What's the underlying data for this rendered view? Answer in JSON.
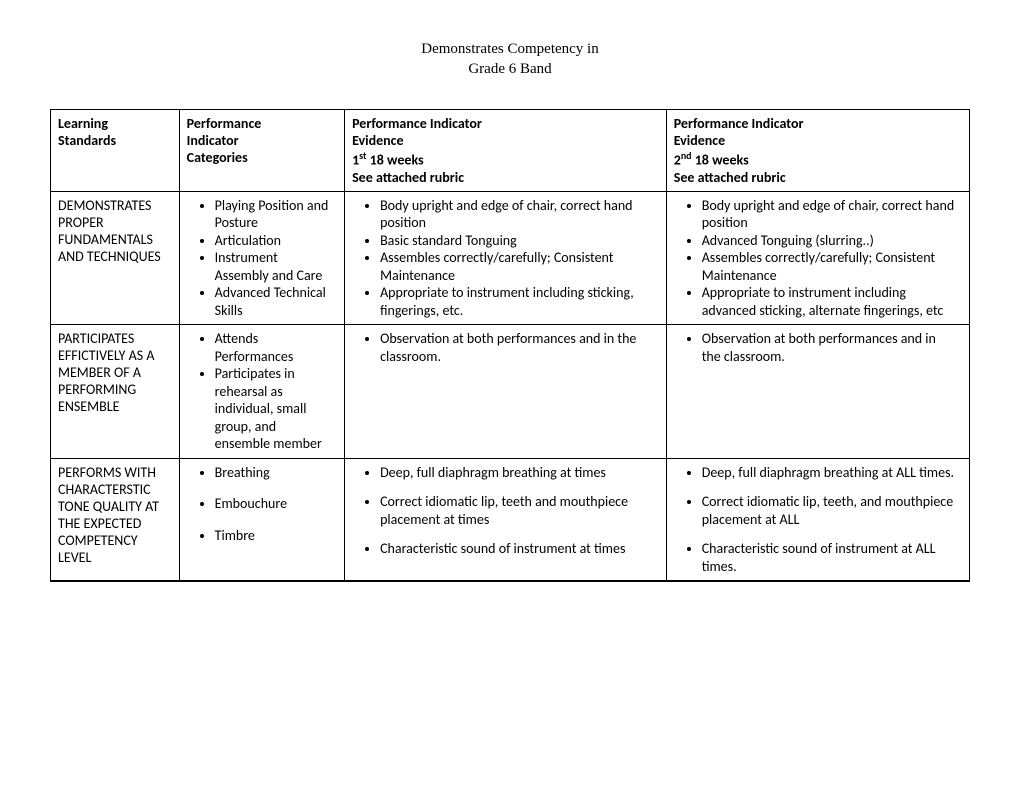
{
  "title_line1": "Demonstrates Competency in",
  "title_line2": "Grade 6 Band",
  "headers": {
    "h1_l1": "Learning",
    "h1_l2": "Standards",
    "h2_l1": "Performance",
    "h2_l2": "Indicator",
    "h2_l3": "Categories",
    "h3_l1": "Performance Indicator",
    "h3_l2": "Evidence",
    "h3_l3a": "1",
    "h3_l3b": "st",
    "h3_l3c": " 18 weeks",
    "h3_l4": "See attached rubric",
    "h4_l1": "Performance Indicator",
    "h4_l2": "Evidence",
    "h4_l3a": "2",
    "h4_l3b": "nd",
    "h4_l3c": " 18 weeks",
    "h4_l4": "See attached rubric"
  },
  "rows": {
    "r1": {
      "std": "DEMONSTRATES PROPER FUNDAMENTALS AND TECHNIQUES",
      "cats": {
        "c0": "Playing Position and Posture",
        "c1": "Articulation",
        "c2": "Instrument Assembly and Care",
        "c3": "Advanced Technical Skills"
      },
      "ev1": {
        "e0": "Body upright and edge of chair, correct hand position",
        "e1": "Basic standard Tonguing",
        "e2": "Assembles correctly/carefully; Consistent Maintenance",
        "e3": "Appropriate to instrument including sticking, fingerings, etc."
      },
      "ev2": {
        "e0": "Body upright and edge of chair, correct hand position",
        "e1": "Advanced Tonguing  (slurring..)",
        "e2": "Assembles correctly/carefully; Consistent Maintenance",
        "e3": "Appropriate to instrument including advanced sticking, alternate fingerings, etc"
      }
    },
    "r2": {
      "std": "PARTICIPATES EFFICTIVELY AS A MEMBER OF A PERFORMING ENSEMBLE",
      "cats": {
        "c0": "Attends Performances",
        "c1": "Participates in rehearsal as individual, small group, and ensemble member"
      },
      "ev1": {
        "e0": "Observation at both performances and in the classroom."
      },
      "ev2": {
        "e0": "Observation at both performances and in the classroom."
      }
    },
    "r3": {
      "std": "PERFORMS WITH CHARACTERSTIC TONE QUALITY AT THE EXPECTED COMPETENCY LEVEL",
      "cats": {
        "c0": "Breathing",
        "c1": "Embouchure",
        "c2": "Timbre"
      },
      "ev1": {
        "e0": "Deep, full diaphragm  breathing at times",
        "e1": "Correct idiomatic lip, teeth and mouthpiece placement at times",
        "e2": "Characteristic sound of instrument at times"
      },
      "ev2": {
        "e0": "Deep, full diaphragm breathing at ALL times.",
        "e1": "Correct idiomatic lip, teeth, and mouthpiece placement at ALL",
        "e2": "Characteristic sound of instrument at ALL times."
      }
    }
  }
}
